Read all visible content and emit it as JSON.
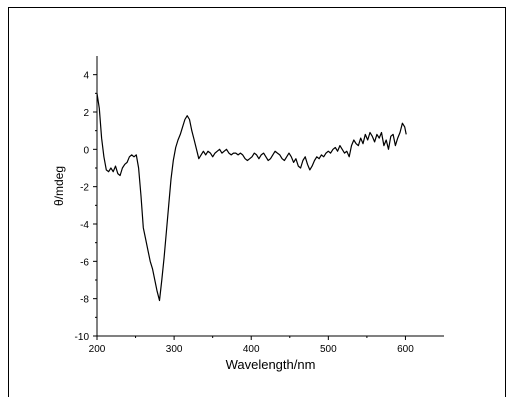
{
  "chart_data": {
    "type": "line",
    "title": "",
    "xlabel": "Wavelength/nm",
    "ylabel": "θ/mdeg",
    "xlim": [
      200,
      650
    ],
    "ylim": [
      -10,
      5
    ],
    "x_ticks": [
      200,
      300,
      400,
      500,
      600
    ],
    "x_tick_labels": [
      "200",
      "300",
      "400",
      "500",
      "600"
    ],
    "y_ticks": [
      -10,
      -8,
      -6,
      -4,
      -2,
      0,
      2,
      4
    ],
    "y_tick_labels": [
      "-10",
      "-8",
      "-6",
      "-4",
      "-2",
      "0",
      "2",
      "4"
    ],
    "grid": false,
    "line_color": "#000000",
    "series": [
      {
        "points": [
          [
            200,
            3.0
          ],
          [
            203,
            2.2
          ],
          [
            206,
            0.6
          ],
          [
            209,
            -0.4
          ],
          [
            212,
            -1.1
          ],
          [
            215,
            -1.2
          ],
          [
            218,
            -1.0
          ],
          [
            221,
            -1.2
          ],
          [
            224,
            -0.9
          ],
          [
            227,
            -1.3
          ],
          [
            230,
            -1.4
          ],
          [
            233,
            -1.0
          ],
          [
            236,
            -0.8
          ],
          [
            239,
            -0.7
          ],
          [
            242,
            -0.4
          ],
          [
            245,
            -0.3
          ],
          [
            248,
            -0.4
          ],
          [
            251,
            -0.3
          ],
          [
            254,
            -1.0
          ],
          [
            257,
            -2.5
          ],
          [
            260,
            -4.2
          ],
          [
            263,
            -4.8
          ],
          [
            266,
            -5.4
          ],
          [
            269,
            -6.0
          ],
          [
            272,
            -6.4
          ],
          [
            275,
            -7.0
          ],
          [
            278,
            -7.6
          ],
          [
            281,
            -8.1
          ],
          [
            284,
            -7.0
          ],
          [
            287,
            -5.8
          ],
          [
            290,
            -4.4
          ],
          [
            293,
            -3.0
          ],
          [
            296,
            -1.6
          ],
          [
            299,
            -0.6
          ],
          [
            302,
            0.1
          ],
          [
            305,
            0.5
          ],
          [
            308,
            0.8
          ],
          [
            311,
            1.2
          ],
          [
            314,
            1.6
          ],
          [
            317,
            1.8
          ],
          [
            320,
            1.6
          ],
          [
            323,
            1.0
          ],
          [
            326,
            0.5
          ],
          [
            329,
            0.0
          ],
          [
            332,
            -0.5
          ],
          [
            335,
            -0.3
          ],
          [
            338,
            -0.1
          ],
          [
            341,
            -0.3
          ],
          [
            344,
            -0.1
          ],
          [
            347,
            -0.2
          ],
          [
            350,
            -0.4
          ],
          [
            353,
            -0.2
          ],
          [
            356,
            -0.1
          ],
          [
            359,
            0.0
          ],
          [
            362,
            -0.2
          ],
          [
            365,
            -0.1
          ],
          [
            368,
            0.0
          ],
          [
            371,
            -0.2
          ],
          [
            374,
            -0.3
          ],
          [
            377,
            -0.2
          ],
          [
            380,
            -0.2
          ],
          [
            383,
            -0.3
          ],
          [
            386,
            -0.2
          ],
          [
            389,
            -0.3
          ],
          [
            392,
            -0.5
          ],
          [
            395,
            -0.6
          ],
          [
            398,
            -0.5
          ],
          [
            401,
            -0.4
          ],
          [
            404,
            -0.2
          ],
          [
            407,
            -0.3
          ],
          [
            410,
            -0.5
          ],
          [
            413,
            -0.3
          ],
          [
            416,
            -0.2
          ],
          [
            419,
            -0.4
          ],
          [
            422,
            -0.6
          ],
          [
            425,
            -0.5
          ],
          [
            428,
            -0.3
          ],
          [
            431,
            -0.1
          ],
          [
            434,
            -0.2
          ],
          [
            437,
            -0.3
          ],
          [
            440,
            -0.5
          ],
          [
            443,
            -0.6
          ],
          [
            446,
            -0.4
          ],
          [
            449,
            -0.2
          ],
          [
            452,
            -0.4
          ],
          [
            455,
            -0.7
          ],
          [
            458,
            -0.5
          ],
          [
            461,
            -0.9
          ],
          [
            464,
            -1.0
          ],
          [
            467,
            -0.6
          ],
          [
            470,
            -0.4
          ],
          [
            473,
            -0.8
          ],
          [
            476,
            -1.1
          ],
          [
            479,
            -0.9
          ],
          [
            482,
            -0.6
          ],
          [
            485,
            -0.4
          ],
          [
            488,
            -0.5
          ],
          [
            491,
            -0.3
          ],
          [
            494,
            -0.4
          ],
          [
            497,
            -0.2
          ],
          [
            500,
            -0.1
          ],
          [
            503,
            -0.2
          ],
          [
            506,
            0.0
          ],
          [
            509,
            0.1
          ],
          [
            512,
            -0.1
          ],
          [
            515,
            0.2
          ],
          [
            518,
            0.0
          ],
          [
            521,
            -0.2
          ],
          [
            524,
            -0.1
          ],
          [
            527,
            -0.4
          ],
          [
            530,
            0.2
          ],
          [
            533,
            0.5
          ],
          [
            536,
            0.3
          ],
          [
            539,
            0.2
          ],
          [
            542,
            0.6
          ],
          [
            545,
            0.3
          ],
          [
            548,
            0.8
          ],
          [
            551,
            0.5
          ],
          [
            554,
            0.9
          ],
          [
            557,
            0.7
          ],
          [
            560,
            0.4
          ],
          [
            563,
            0.8
          ],
          [
            566,
            0.6
          ],
          [
            569,
            0.9
          ],
          [
            572,
            0.2
          ],
          [
            575,
            0.5
          ],
          [
            578,
            0.0
          ],
          [
            581,
            0.7
          ],
          [
            584,
            0.8
          ],
          [
            587,
            0.2
          ],
          [
            590,
            0.6
          ],
          [
            593,
            0.9
          ],
          [
            596,
            1.4
          ],
          [
            599,
            1.2
          ],
          [
            601,
            0.8
          ]
        ]
      }
    ]
  }
}
